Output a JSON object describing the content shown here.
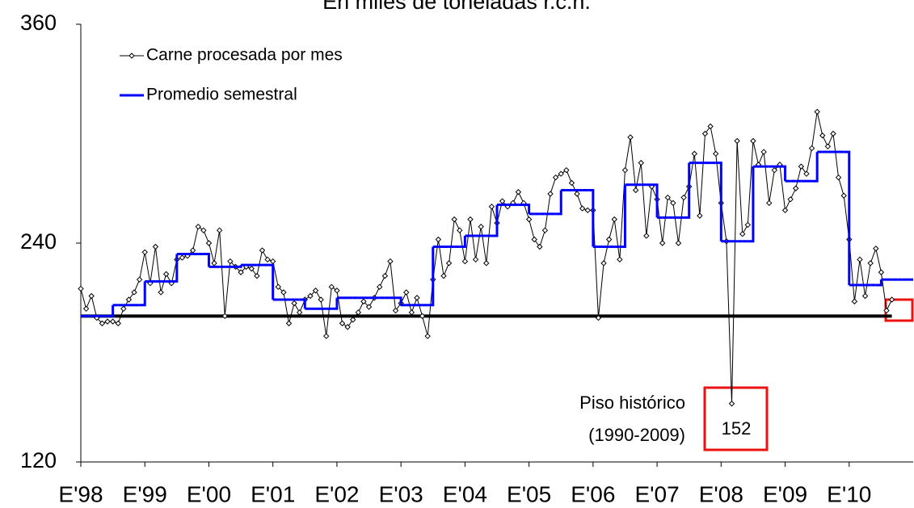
{
  "chart_data": {
    "type": "line",
    "title": "En miles de toneladas r.c.h.",
    "categories": [
      "E'98",
      null,
      null,
      null,
      null,
      null,
      null,
      null,
      null,
      null,
      null,
      null,
      "E'99",
      null,
      null,
      null,
      null,
      null,
      null,
      null,
      null,
      null,
      null,
      null,
      "E'00",
      null,
      null,
      null,
      null,
      null,
      null,
      null,
      null,
      null,
      null,
      null,
      "E'01",
      null,
      null,
      null,
      null,
      null,
      null,
      null,
      null,
      null,
      null,
      null,
      "E'02",
      null,
      null,
      null,
      null,
      null,
      null,
      null,
      null,
      null,
      null,
      null,
      "E'03",
      null,
      null,
      null,
      null,
      null,
      null,
      null,
      null,
      null,
      null,
      null,
      "E'04",
      null,
      null,
      null,
      null,
      null,
      null,
      null,
      null,
      null,
      null,
      null,
      "E'05",
      null,
      null,
      null,
      null,
      null,
      null,
      null,
      null,
      null,
      null,
      null,
      "E'06",
      null,
      null,
      null,
      null,
      null,
      null,
      null,
      null,
      null,
      null,
      null,
      "E'07",
      null,
      null,
      null,
      null,
      null,
      null,
      null,
      null,
      null,
      null,
      null,
      "E'08",
      null,
      null,
      null,
      null,
      null,
      null,
      null,
      null,
      null,
      null,
      null,
      "E'09",
      null,
      null,
      null,
      null,
      null,
      null,
      null,
      null,
      null,
      null,
      null,
      "E'10",
      null,
      null,
      null,
      null,
      null,
      null,
      null,
      null,
      null,
      null,
      null
    ],
    "series": [
      {
        "name": "Carne procesada por mes",
        "color": "#000000",
        "style": "markers",
        "values": [
          215,
          204,
          211,
          199,
          196,
          197,
          197,
          196,
          204,
          209,
          213,
          220,
          235,
          218,
          238,
          213,
          223,
          218,
          231,
          232,
          233,
          236,
          249,
          247,
          240,
          229,
          247,
          200,
          230,
          227,
          224,
          227,
          226,
          222,
          236,
          231,
          230,
          216,
          213,
          196,
          207,
          202,
          209,
          211,
          214,
          209,
          189,
          216,
          214,
          196,
          194,
          198,
          202,
          208,
          205,
          210,
          216,
          222,
          230,
          203,
          207,
          213,
          202,
          210,
          200,
          189,
          220,
          242,
          222,
          229,
          253,
          247,
          230,
          253,
          231,
          249,
          229,
          260,
          251,
          263,
          260,
          262,
          268,
          262,
          253,
          242,
          238,
          247,
          267,
          276,
          278,
          280,
          273,
          267,
          259,
          258,
          258,
          199,
          229,
          242,
          253,
          231,
          280,
          298,
          269,
          284,
          244,
          271,
          264,
          240,
          265,
          262,
          240,
          265,
          271,
          289,
          255,
          300,
          304,
          289,
          262,
          241,
          152,
          296,
          245,
          250,
          296,
          283,
          290,
          262,
          280,
          283,
          258,
          264,
          270,
          282,
          278,
          292,
          312,
          299,
          293,
          300,
          276,
          266,
          242,
          208,
          231,
          211,
          229,
          237,
          224,
          203,
          209,
          null,
          null,
          null
        ]
      },
      {
        "name": "Promedio semestral",
        "color": "#0000ff",
        "style": "step",
        "values": [
          200,
          200,
          200,
          200,
          200,
          200,
          206,
          206,
          206,
          206,
          206,
          206,
          219,
          219,
          219,
          219,
          219,
          219,
          234,
          234,
          234,
          234,
          234,
          234,
          227,
          227,
          227,
          227,
          227,
          227,
          228,
          228,
          228,
          228,
          228,
          228,
          209,
          209,
          209,
          209,
          209,
          209,
          204,
          204,
          204,
          204,
          204,
          204,
          210,
          210,
          210,
          210,
          210,
          210,
          210,
          210,
          210,
          210,
          210,
          210,
          206,
          206,
          206,
          206,
          206,
          206,
          238,
          238,
          238,
          238,
          238,
          238,
          244,
          244,
          244,
          244,
          244,
          244,
          261,
          261,
          261,
          261,
          261,
          261,
          256,
          256,
          256,
          256,
          256,
          256,
          269,
          269,
          269,
          269,
          269,
          269,
          238,
          238,
          238,
          238,
          238,
          238,
          272,
          272,
          272,
          272,
          272,
          272,
          254,
          254,
          254,
          254,
          254,
          254,
          284,
          284,
          284,
          284,
          284,
          284,
          241,
          241,
          241,
          241,
          241,
          241,
          282,
          282,
          282,
          282,
          282,
          282,
          274,
          274,
          274,
          274,
          274,
          274,
          290,
          290,
          290,
          290,
          290,
          290,
          217,
          217,
          217,
          217,
          217,
          217,
          220,
          220,
          220,
          220,
          220,
          220
        ]
      }
    ],
    "floor": {
      "value": 200,
      "color": "#000000",
      "label": [
        "Piso histórico",
        "(1990-2009)"
      ]
    },
    "ylim": [
      120,
      360
    ],
    "yticks": [
      120,
      240,
      360
    ],
    "legend": "upper left"
  }
}
